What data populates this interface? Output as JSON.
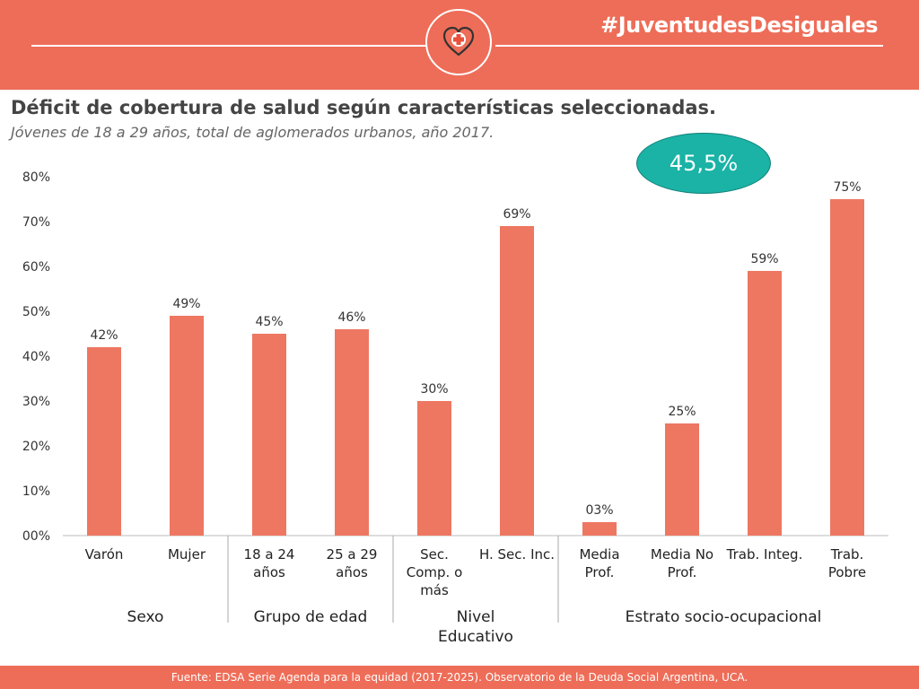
{
  "header": {
    "hashtag": "#JuventudesDesiguales",
    "logo_icon": "heart-cross-icon"
  },
  "title": "Déficit de cobertura de salud según características seleccionadas.",
  "subtitle": "Jóvenes de 18 a 29 años, total de aglomerados urbanos, año 2017.",
  "badge": "45,5%",
  "footer": "Fuente: EDSA Serie Agenda para la equidad (2017-2025). Observatorio de la Deuda Social Argentina, UCA.",
  "colors": {
    "header": "#ee6d58",
    "bar": "#ee7762",
    "badge": "#1ab3a6"
  },
  "chart_data": {
    "type": "bar",
    "title": "",
    "xlabel": "",
    "ylabel": "",
    "ylim": [
      0,
      80
    ],
    "yticks": [
      "00%",
      "10%",
      "20%",
      "30%",
      "40%",
      "50%",
      "60%",
      "70%",
      "80%"
    ],
    "grid": false,
    "categories": [
      [
        "Varón"
      ],
      [
        "Mujer"
      ],
      [
        "18 a 24",
        "años"
      ],
      [
        "25 a 29",
        "años"
      ],
      [
        "Sec.",
        "Comp. o",
        "más"
      ],
      [
        "H. Sec. Inc."
      ],
      [
        "Media",
        "Prof."
      ],
      [
        "Media No",
        "Prof."
      ],
      [
        "Trab. Integ."
      ],
      [
        "Trab.",
        "Pobre"
      ]
    ],
    "values": [
      42,
      49,
      45,
      46,
      30,
      69,
      3,
      25,
      59,
      75
    ],
    "data_labels": [
      "42%",
      "49%",
      "45%",
      "46%",
      "30%",
      "69%",
      "03%",
      "25%",
      "59%",
      "75%"
    ],
    "groups": [
      {
        "label": [
          "Sexo"
        ],
        "start": 0,
        "end": 1
      },
      {
        "label": [
          "Grupo de edad"
        ],
        "start": 2,
        "end": 3
      },
      {
        "label": [
          "Nivel",
          "Educativo"
        ],
        "start": 4,
        "end": 5
      },
      {
        "label": [
          "Estrato socio-ocupacional"
        ],
        "start": 6,
        "end": 9
      }
    ]
  }
}
